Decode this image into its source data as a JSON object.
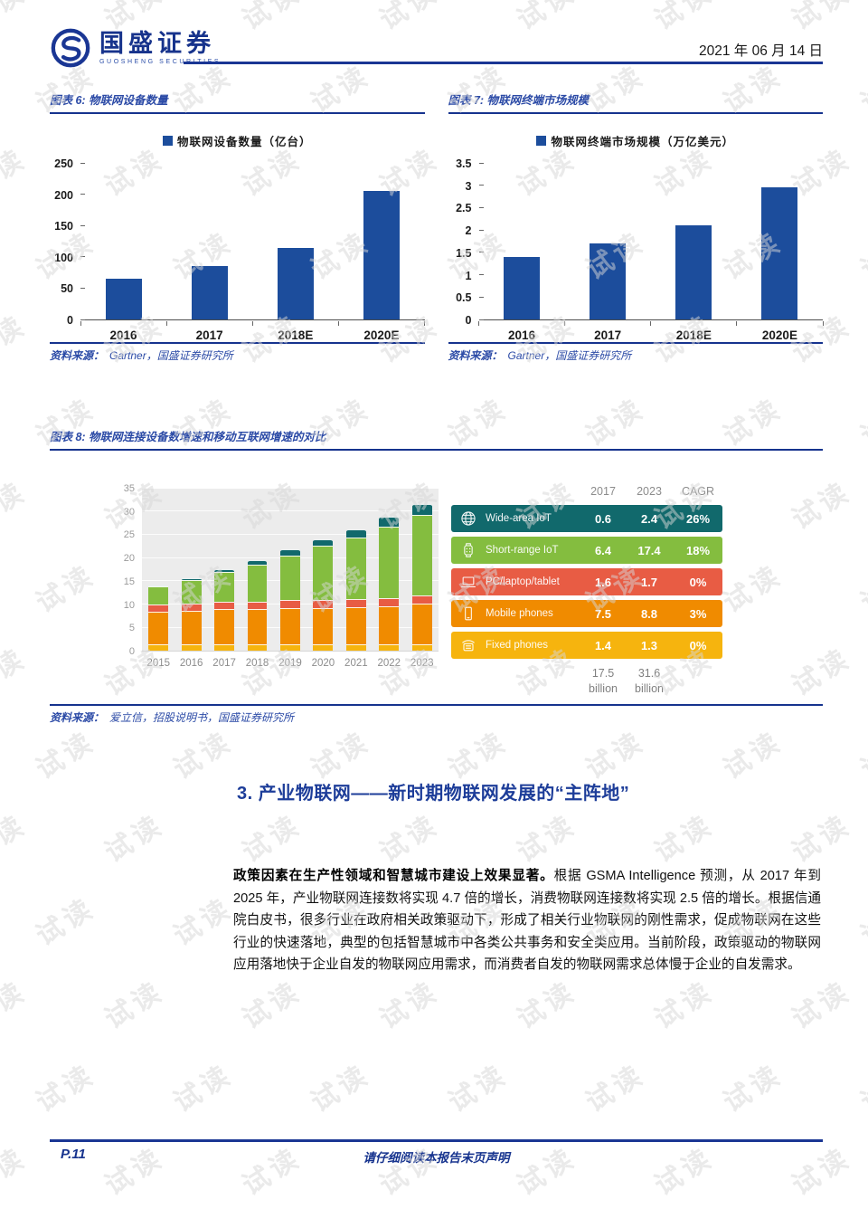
{
  "header": {
    "brand_cn": "国盛证券",
    "brand_en": "GUOSHENG SECURITIES",
    "date": "2021 年 06 月 14 日"
  },
  "watermark": {
    "text": "试读"
  },
  "figures": {
    "fig6": {
      "title": "图表 6: 物联网设备数量",
      "source_label": "资料来源：",
      "source": "Gartner，国盛证券研究所"
    },
    "fig7": {
      "title": "图表 7: 物联网终端市场规模",
      "source_label": "资料来源：",
      "source": "Gartner，国盛证券研究所"
    },
    "fig8": {
      "title": "图表 8: 物联网连接设备数增速和移动互联网增速的对比",
      "source_label": "资料来源：",
      "source": "爱立信，招股说明书，国盛证券研究所"
    }
  },
  "chart_data": [
    {
      "id": "fig6",
      "type": "bar",
      "title": "物联网设备数量",
      "legend": "物联网设备数量（亿台）",
      "categories": [
        "2016",
        "2017",
        "2018E",
        "2020E"
      ],
      "values": [
        65,
        86,
        114,
        205
      ],
      "ylim": [
        0,
        250
      ],
      "yticks": [
        0,
        50,
        100,
        150,
        200,
        250
      ],
      "bar_color": "#1c4d9c",
      "grid": false,
      "legend_position": "top"
    },
    {
      "id": "fig7",
      "type": "bar",
      "title": "物联网终端市场规模",
      "legend": "物联网终端市场规模（万亿美元）",
      "categories": [
        "2016",
        "2017",
        "2018E",
        "2020E"
      ],
      "values": [
        1.4,
        1.7,
        2.1,
        2.95
      ],
      "ylim": [
        0,
        3.5
      ],
      "yticks": [
        0,
        0.5,
        1,
        1.5,
        2,
        2.5,
        3,
        3.5
      ],
      "bar_color": "#1c4d9c",
      "grid": false,
      "legend_position": "top"
    },
    {
      "id": "fig8",
      "type": "stacked-bar",
      "title": "物联网连接设备数增速和移动互联网增速的对比",
      "x": [
        "2015",
        "2016",
        "2017",
        "2018",
        "2019",
        "2020",
        "2021",
        "2022",
        "2023"
      ],
      "ylim": [
        0,
        35
      ],
      "yticks": [
        0,
        5,
        10,
        15,
        20,
        25,
        30,
        35
      ],
      "grid": true,
      "series": [
        {
          "name": "Fixed phones",
          "color": "#f6b40e",
          "values": [
            1.3,
            1.3,
            1.4,
            1.4,
            1.4,
            1.4,
            1.3,
            1.3,
            1.3
          ]
        },
        {
          "name": "Mobile phones",
          "color": "#f08b00",
          "values": [
            7.1,
            7.3,
            7.5,
            7.6,
            7.7,
            7.8,
            8.0,
            8.3,
            8.8
          ]
        },
        {
          "name": "PC/laptop/tablet",
          "color": "#e85c44",
          "values": [
            1.5,
            1.6,
            1.6,
            1.6,
            1.7,
            1.7,
            1.7,
            1.7,
            1.7
          ]
        },
        {
          "name": "Short-range IoT",
          "color": "#84bd3f",
          "values": [
            3.9,
            4.9,
            6.4,
            7.9,
            9.7,
            11.6,
            13.3,
            15.3,
            17.4
          ]
        },
        {
          "name": "Wide-area IoT",
          "color": "#11696c",
          "values": [
            0.3,
            0.4,
            0.6,
            0.9,
            1.2,
            1.5,
            1.8,
            2.1,
            2.4
          ]
        }
      ],
      "table": {
        "columns": [
          "2017",
          "2023",
          "CAGR"
        ],
        "rows": [
          {
            "label": "Wide-area IoT",
            "icon": "globe-icon",
            "color": "#11696c",
            "values": [
              "0.6",
              "2.4",
              "26%"
            ]
          },
          {
            "label": "Short-range IoT",
            "icon": "smartwatch-icon",
            "color": "#84bd3f",
            "values": [
              "6.4",
              "17.4",
              "18%"
            ]
          },
          {
            "label": "PC/laptop/tablet",
            "icon": "laptop-icon",
            "color": "#e85c44",
            "values": [
              "1.6",
              "1.7",
              "0%"
            ]
          },
          {
            "label": "Mobile phones",
            "icon": "mobile-phone-icon",
            "color": "#f08b00",
            "values": [
              "7.5",
              "8.8",
              "3%"
            ]
          },
          {
            "label": "Fixed phones",
            "icon": "fixed-phone-icon",
            "color": "#f6b40e",
            "values": [
              "1.4",
              "1.3",
              "0%"
            ]
          }
        ],
        "totals": [
          {
            "value": "17.5",
            "unit": "billion"
          },
          {
            "value": "31.6",
            "unit": "billion"
          }
        ]
      }
    }
  ],
  "section": {
    "heading": "3. 产业物联网——新时期物联网发展的“主阵地”",
    "lead_bold": "政策因素在生产性领域和智慧城市建设上效果显著。",
    "body": "根据 GSMA Intelligence 预测，从 2017 年到 2025 年，产业物联网连接数将实现 4.7 倍的增长，消费物联网连接数将实现 2.5 倍的增长。根据信通院白皮书，很多行业在政府相关政策驱动下，形成了相关行业物联网的刚性需求，促成物联网在这些行业的快速落地，典型的包括智慧城市中各类公共事务和安全类应用。当前阶段，政策驱动的物联网应用落地快于企业自发的物联网应用需求，而消费者自发的物联网需求总体慢于企业的自发需求。"
  },
  "footer": {
    "page": "P.11",
    "disclaimer": "请仔细阅读本报告末页声明"
  }
}
